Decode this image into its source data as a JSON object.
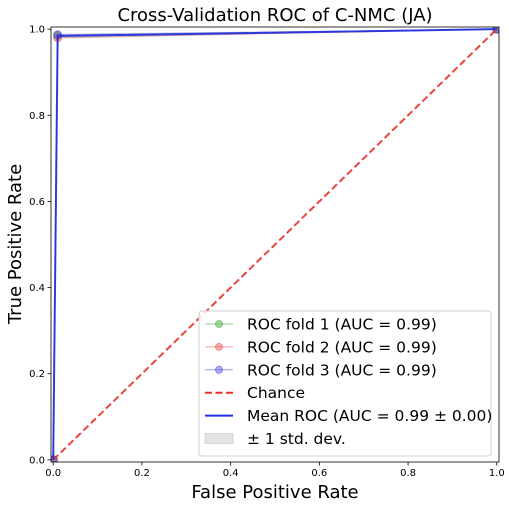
{
  "chart_data": {
    "type": "line",
    "title": "Cross-Validation ROC of C-NMC (JA)",
    "xlabel": "False Positive Rate",
    "ylabel": "True Positive Rate",
    "xlim": [
      -0.005,
      1.005
    ],
    "ylim": [
      -0.005,
      1.005
    ],
    "xticks": [
      0.0,
      0.2,
      0.4,
      0.6,
      0.8,
      1.0
    ],
    "xtick_labels": [
      "0.0",
      "0.2",
      "0.4",
      "0.6",
      "0.8",
      "1.0"
    ],
    "yticks": [
      0.0,
      0.2,
      0.4,
      0.6,
      0.8,
      1.0
    ],
    "ytick_labels": [
      "0.0",
      "0.2",
      "0.4",
      "0.6",
      "0.8",
      "1.0"
    ],
    "grid": false,
    "legend_position": "lower-right",
    "series": [
      {
        "name": "ROC fold 1 (AUC = 0.99)",
        "color": "#2ca02c",
        "style": "line-marker",
        "x": [
          0.0,
          0.01,
          1.0
        ],
        "y": [
          0.0,
          0.985,
          1.0
        ]
      },
      {
        "name": "ROC fold 2 (AUC = 0.99)",
        "color": "#e8423f",
        "style": "line-marker",
        "x": [
          0.0,
          0.01,
          1.0
        ],
        "y": [
          0.0,
          0.98,
          1.0
        ]
      },
      {
        "name": "ROC fold 3 (AUC = 0.99)",
        "color": "#3a3ae0",
        "style": "line-marker",
        "x": [
          0.0,
          0.01,
          1.0
        ],
        "y": [
          0.0,
          0.987,
          1.0
        ]
      },
      {
        "name": "Chance",
        "color": "#e8302a",
        "style": "dashed",
        "x": [
          0.0,
          1.0
        ],
        "y": [
          0.0,
          1.0
        ]
      },
      {
        "name": "Mean ROC (AUC = 0.99 ± 0.00)",
        "color": "#1f2fe0",
        "style": "solid",
        "x": [
          0.0,
          0.01,
          1.0
        ],
        "y": [
          0.0,
          0.984,
          1.0
        ]
      }
    ],
    "std_band": {
      "name": "± 1 std. dev.",
      "color": "#b0b0b0",
      "x": [
        0.0,
        0.01,
        1.0
      ],
      "lower": [
        0.0,
        0.978,
        1.0
      ],
      "upper": [
        0.0,
        0.99,
        1.0
      ]
    }
  }
}
